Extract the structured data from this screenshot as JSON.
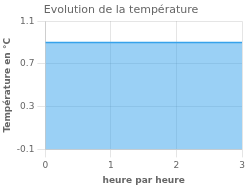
{
  "chart_data": {
    "type": "area",
    "title": "Evolution de la température",
    "x_label": "heure par heure",
    "y_label": "Température en °C",
    "x": [
      0,
      3
    ],
    "values": [
      0.9,
      0.9
    ],
    "xlim": [
      0,
      3
    ],
    "xticks": [
      0,
      1,
      2,
      3
    ],
    "ylim": [
      -0.1,
      1.1
    ],
    "yticks": [
      -0.1,
      0.3,
      0.7,
      1.1
    ],
    "grid": true
  }
}
